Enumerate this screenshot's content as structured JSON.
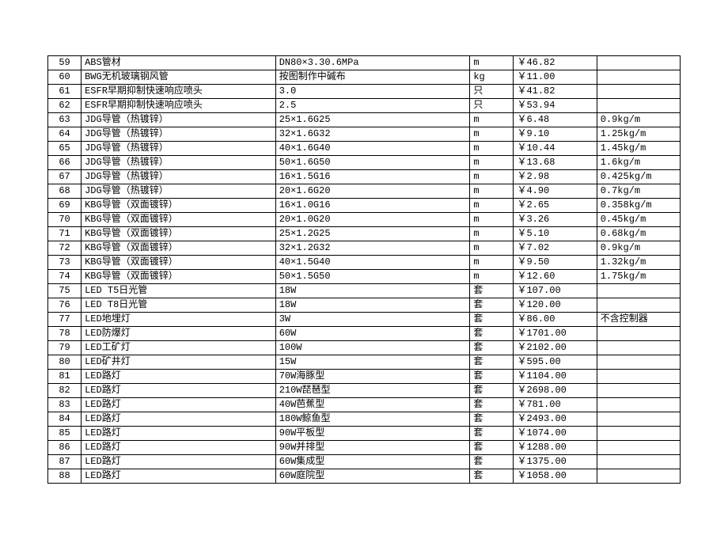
{
  "table": {
    "rows": [
      {
        "num": "59",
        "name": "ABS管材",
        "spec": "DN80×3.30.6MPa",
        "unit": "m",
        "price": "￥46.82",
        "note": ""
      },
      {
        "num": "60",
        "name": "BWG无机玻璃钢风管",
        "spec": "按图制作中碱布",
        "unit": "kg",
        "price": "￥11.00",
        "note": ""
      },
      {
        "num": "61",
        "name": "ESFR早期抑制快速响应喷头",
        "spec": "3.0",
        "unit": "只",
        "price": "￥41.82",
        "note": ""
      },
      {
        "num": "62",
        "name": "ESFR早期抑制快速响应喷头",
        "spec": "2.5",
        "unit": "只",
        "price": "￥53.94",
        "note": ""
      },
      {
        "num": "63",
        "name": "JDG导管（热镀锌）",
        "spec": "25×1.6G25",
        "unit": "m",
        "price": "￥6.48",
        "note": "0.9kg/m"
      },
      {
        "num": "64",
        "name": "JDG导管（热镀锌）",
        "spec": "32×1.6G32",
        "unit": "m",
        "price": "￥9.10",
        "note": "1.25kg/m"
      },
      {
        "num": "65",
        "name": "JDG导管（热镀锌）",
        "spec": "40×1.6G40",
        "unit": "m",
        "price": "￥10.44",
        "note": "1.45kg/m"
      },
      {
        "num": "66",
        "name": "JDG导管（热镀锌）",
        "spec": "50×1.6G50",
        "unit": "m",
        "price": "￥13.68",
        "note": "1.6kg/m"
      },
      {
        "num": "67",
        "name": "JDG导管（热镀锌）",
        "spec": "16×1.5G16",
        "unit": "m",
        "price": "￥2.98",
        "note": "0.425kg/m"
      },
      {
        "num": "68",
        "name": "JDG导管（热镀锌）",
        "spec": "20×1.6G20",
        "unit": "m",
        "price": "￥4.90",
        "note": "0.7kg/m"
      },
      {
        "num": "69",
        "name": "KBG导管（双面镀锌）",
        "spec": "16×1.0G16",
        "unit": "m",
        "price": "￥2.65",
        "note": "0.358kg/m"
      },
      {
        "num": "70",
        "name": "KBG导管（双面镀锌）",
        "spec": "20×1.0G20",
        "unit": "m",
        "price": "￥3.26",
        "note": "0.45kg/m"
      },
      {
        "num": "71",
        "name": "KBG导管（双面镀锌）",
        "spec": "25×1.2G25",
        "unit": "m",
        "price": "￥5.10",
        "note": "0.68kg/m"
      },
      {
        "num": "72",
        "name": "KBG导管（双面镀锌）",
        "spec": "32×1.2G32",
        "unit": "m",
        "price": "￥7.02",
        "note": "0.9kg/m"
      },
      {
        "num": "73",
        "name": "KBG导管（双面镀锌）",
        "spec": "40×1.5G40",
        "unit": "m",
        "price": "￥9.50",
        "note": "1.32kg/m"
      },
      {
        "num": "74",
        "name": "KBG导管（双面镀锌）",
        "spec": "50×1.5G50",
        "unit": "m",
        "price": "￥12.60",
        "note": "1.75kg/m"
      },
      {
        "num": "75",
        "name": "LED T5日光管",
        "spec": "18W",
        "unit": "套",
        "price": "￥107.00",
        "note": ""
      },
      {
        "num": "76",
        "name": "LED T8日光管",
        "spec": "18W",
        "unit": "套",
        "price": "￥120.00",
        "note": ""
      },
      {
        "num": "77",
        "name": "LED地埋灯",
        "spec": "3W",
        "unit": "套",
        "price": "￥86.00",
        "note": "不含控制器"
      },
      {
        "num": "78",
        "name": "LED防爆灯",
        "spec": "60W",
        "unit": "套",
        "price": "￥1701.00",
        "note": ""
      },
      {
        "num": "79",
        "name": "LED工矿灯",
        "spec": "100W",
        "unit": "套",
        "price": "￥2102.00",
        "note": ""
      },
      {
        "num": "80",
        "name": "LED矿井灯",
        "spec": "15W",
        "unit": "套",
        "price": "￥595.00",
        "note": ""
      },
      {
        "num": "81",
        "name": "LED路灯",
        "spec": "70W海豚型",
        "unit": "套",
        "price": "￥1104.00",
        "note": ""
      },
      {
        "num": "82",
        "name": "LED路灯",
        "spec": "210W琵琶型",
        "unit": "套",
        "price": "￥2698.00",
        "note": ""
      },
      {
        "num": "83",
        "name": "LED路灯",
        "spec": "40W芭蕉型",
        "unit": "套",
        "price": "￥781.00",
        "note": ""
      },
      {
        "num": "84",
        "name": "LED路灯",
        "spec": "180W鲸鱼型",
        "unit": "套",
        "price": "￥2493.00",
        "note": ""
      },
      {
        "num": "85",
        "name": "LED路灯",
        "spec": "90W平板型",
        "unit": "套",
        "price": "￥1074.00",
        "note": ""
      },
      {
        "num": "86",
        "name": "LED路灯",
        "spec": "90W并排型",
        "unit": "套",
        "price": "￥1288.00",
        "note": ""
      },
      {
        "num": "87",
        "name": "LED路灯",
        "spec": "60W集成型",
        "unit": "套",
        "price": "￥1375.00",
        "note": ""
      },
      {
        "num": "88",
        "name": "LED路灯",
        "spec": "60W庭院型",
        "unit": "套",
        "price": "￥1058.00",
        "note": ""
      }
    ]
  }
}
